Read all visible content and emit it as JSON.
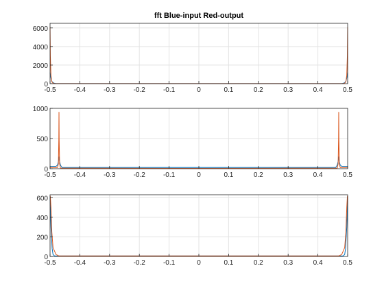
{
  "chart_data": {
    "title": "fft Blue-input Red-output",
    "colors": {
      "input": "#0072bd",
      "output": "#d95319",
      "grid": "#e3e3e3",
      "axis": "#262626"
    },
    "panels": [
      {
        "type": "line",
        "xlim": [
          -0.5,
          0.5
        ],
        "ylim": [
          0,
          6500
        ],
        "xticks": [
          "-0.5",
          "-0.4",
          "-0.3",
          "-0.2",
          "-0.1",
          "0",
          "0.1",
          "0.2",
          "0.3",
          "0.4",
          "0.5"
        ],
        "yticks": [
          0,
          2000,
          4000,
          6000
        ],
        "ytick_labels": [
          "0",
          "2000",
          "4000",
          "6000"
        ],
        "grid": true,
        "series": [
          {
            "x": [
              -0.5,
              -0.497,
              -0.494,
              -0.49,
              -0.485,
              -0.48,
              0,
              0.48,
              0.485,
              0.49,
              0.494,
              0.497,
              0.5
            ],
            "y": [
              1200,
              600,
              250,
              110,
              40,
              10,
              10,
              10,
              40,
              110,
              250,
              600,
              1200
            ]
          },
          {
            "x": [
              -0.5,
              -0.499,
              -0.497,
              -0.494,
              -0.49,
              -0.485,
              0,
              0.485,
              0.49,
              0.494,
              0.497,
              0.499,
              0.5
            ],
            "y": [
              6100,
              3000,
              900,
              200,
              60,
              10,
              10,
              10,
              60,
              200,
              900,
              3000,
              6100
            ]
          }
        ]
      },
      {
        "type": "line",
        "xlim": [
          -0.5,
          0.5
        ],
        "ylim": [
          0,
          1000
        ],
        "xticks": [
          "-0.5",
          "-0.4",
          "-0.3",
          "-0.2",
          "-0.1",
          "0",
          "0.1",
          "0.2",
          "0.3",
          "0.4",
          "0.5"
        ],
        "yticks": [
          0,
          500,
          1000
        ],
        "ytick_labels": [
          "0",
          "500",
          "1000"
        ],
        "grid": true,
        "series": [
          {
            "x": [
              -0.5,
              -0.48,
              -0.475,
              -0.472,
              -0.47,
              -0.468,
              -0.465,
              -0.46,
              0,
              0.46,
              0.465,
              0.468,
              0.47,
              0.472,
              0.475,
              0.48,
              0.5
            ],
            "y": [
              40,
              40,
              60,
              120,
              200,
              120,
              60,
              20,
              20,
              20,
              60,
              120,
              200,
              120,
              60,
              40,
              40
            ]
          },
          {
            "x": [
              -0.5,
              -0.475,
              -0.472,
              -0.4705,
              -0.47,
              -0.4695,
              -0.468,
              -0.465,
              0,
              0.465,
              0.468,
              0.4695,
              0.47,
              0.4705,
              0.472,
              0.475,
              0.5
            ],
            "y": [
              20,
              20,
              80,
              500,
              940,
              500,
              80,
              10,
              5,
              10,
              80,
              500,
              940,
              500,
              80,
              20,
              20
            ]
          }
        ]
      },
      {
        "type": "line",
        "xlim": [
          -0.5,
          0.5
        ],
        "ylim": [
          0,
          630
        ],
        "xticks": [
          "-0.5",
          "-0.4",
          "-0.3",
          "-0.2",
          "-0.1",
          "0",
          "0.1",
          "0.2",
          "0.3",
          "0.4",
          "0.5"
        ],
        "yticks": [
          0,
          200,
          400,
          600
        ],
        "ytick_labels": [
          "0",
          "200",
          "400",
          "600"
        ],
        "grid": true,
        "series": [
          {
            "x": [
              -0.5,
              -0.497,
              -0.493,
              -0.49,
              -0.485,
              0,
              0.485,
              0.49,
              0.493,
              0.497,
              0.5
            ],
            "y": [
              620,
              300,
              80,
              20,
              5,
              5,
              5,
              20,
              80,
              300,
              620
            ]
          },
          {
            "x": [
              -0.5,
              -0.499,
              -0.497,
              -0.494,
              -0.49,
              -0.48,
              -0.47,
              0,
              0.47,
              0.48,
              0.49,
              0.494,
              0.497,
              0.499,
              0.5
            ],
            "y": [
              620,
              610,
              500,
              250,
              90,
              20,
              5,
              5,
              5,
              20,
              90,
              250,
              500,
              610,
              620
            ]
          }
        ]
      }
    ]
  }
}
